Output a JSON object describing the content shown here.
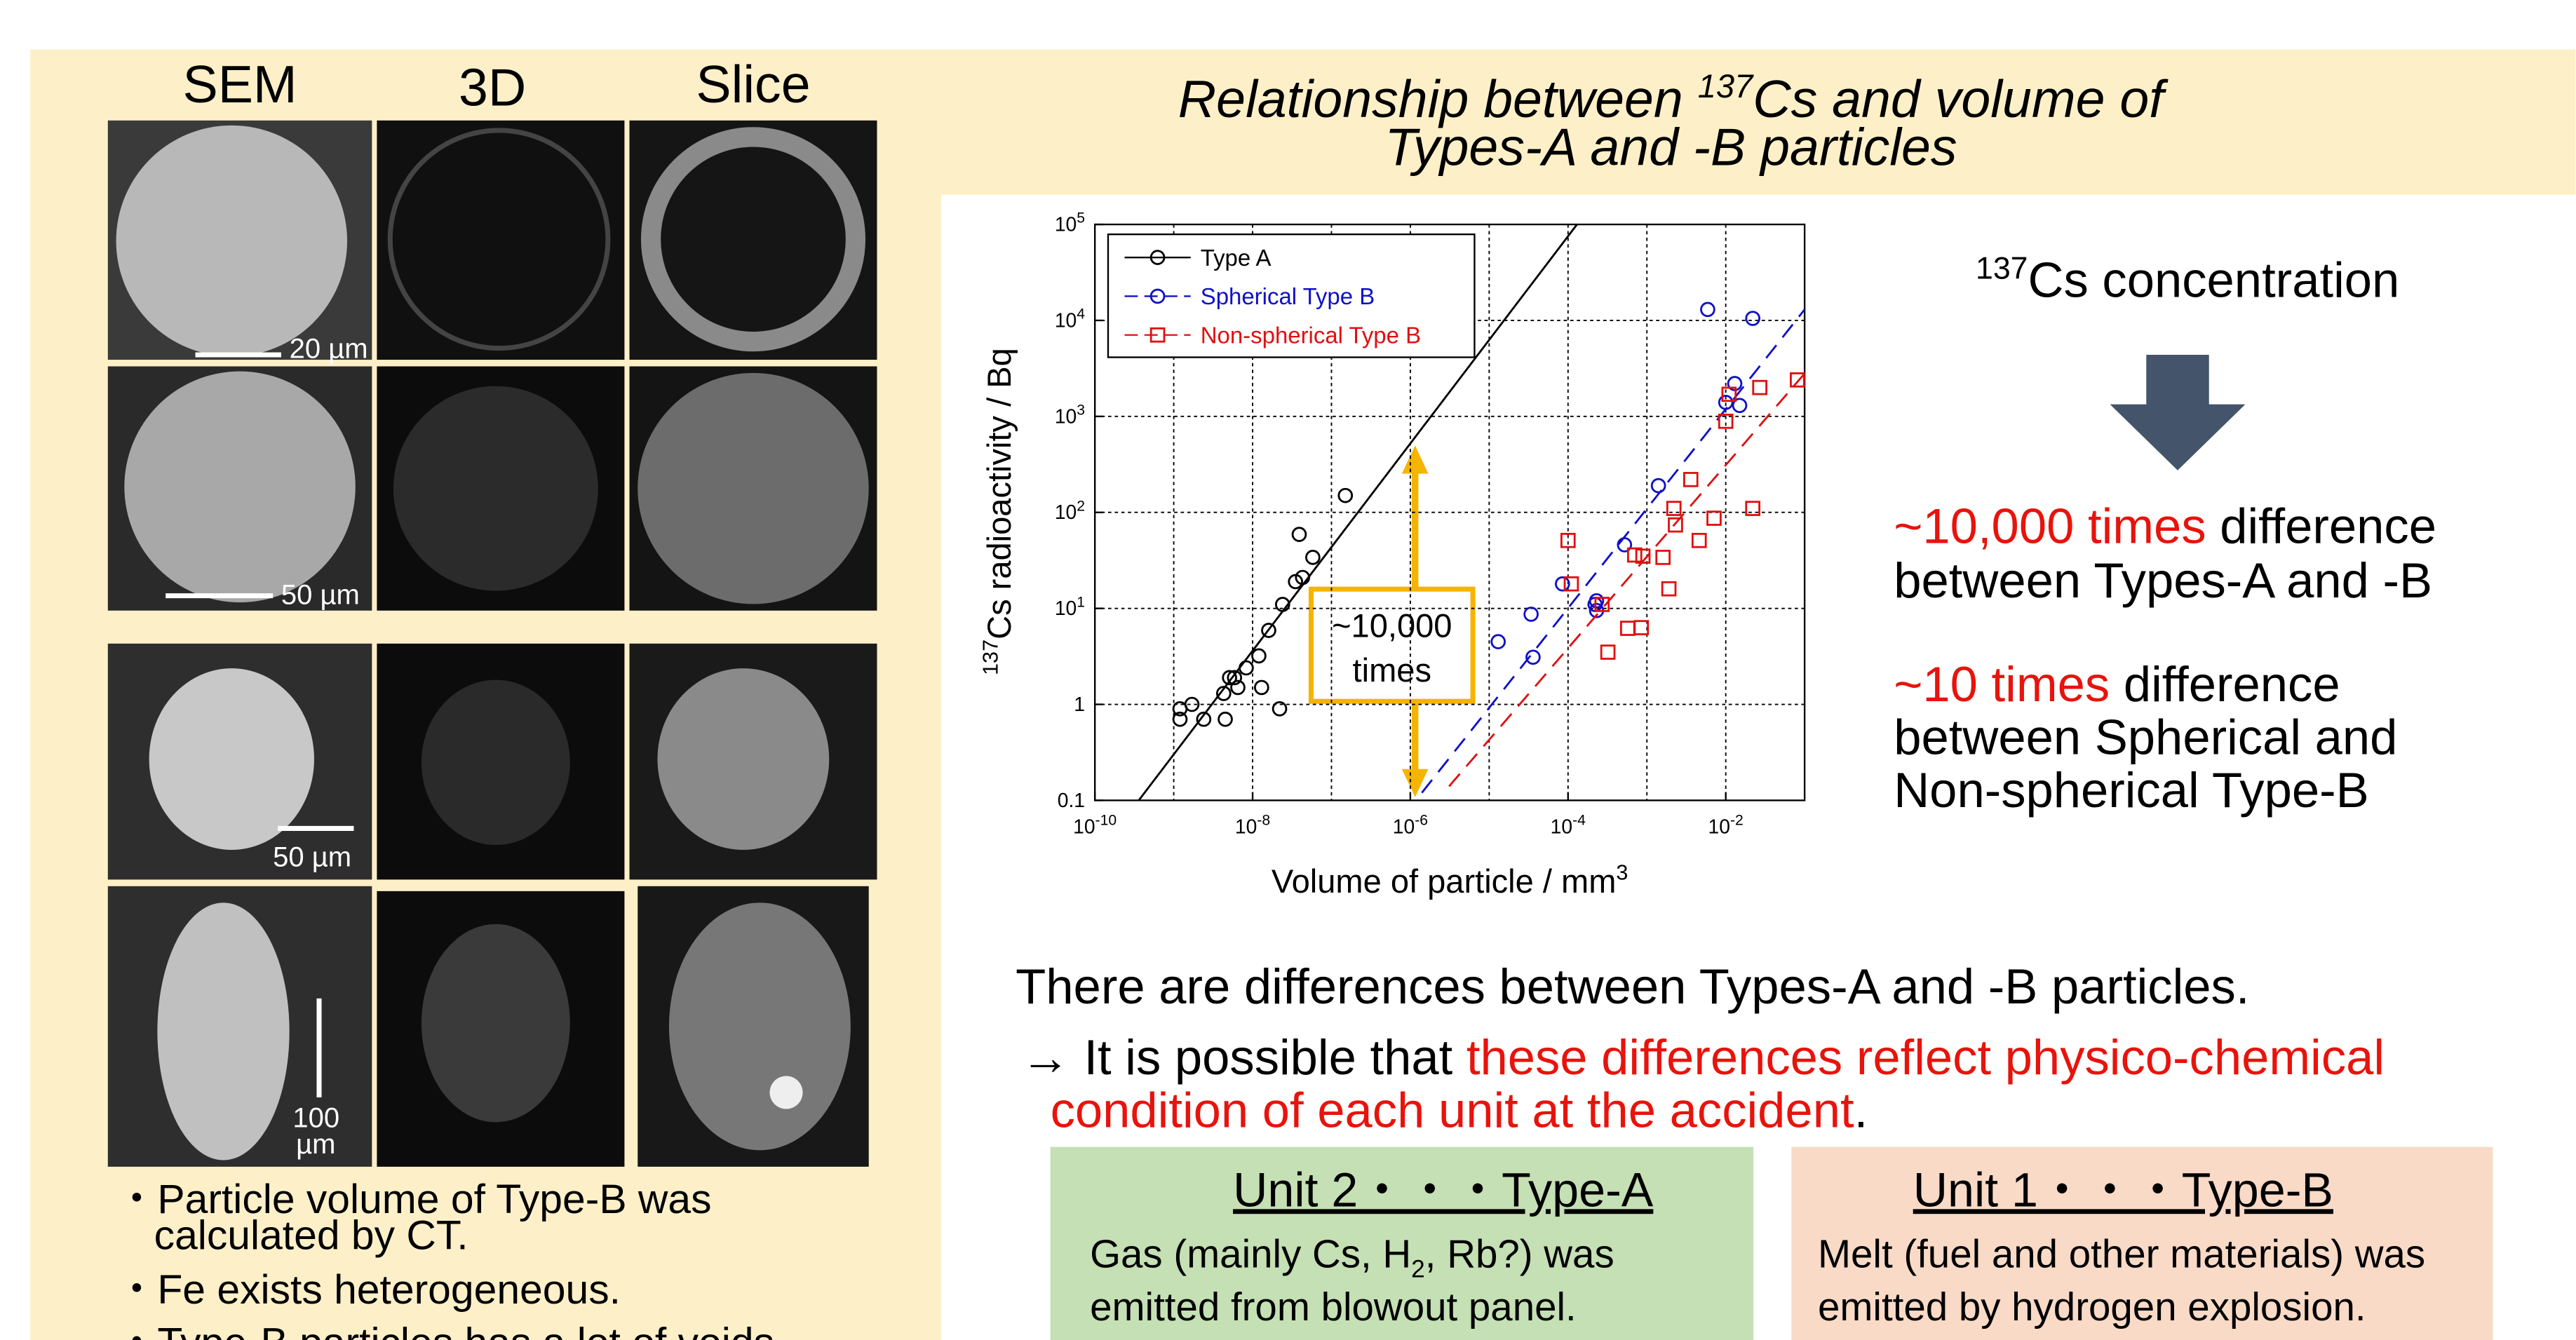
{
  "left_panel": {
    "columns": [
      "SEM",
      "3D",
      "Slice"
    ],
    "scale_bars": [
      "20 µm",
      "50 µm",
      "50 µm"
    ],
    "scale_bar_last": [
      "100",
      "µm"
    ],
    "bullets": [
      [
        "・Particle volume of Type-B was",
        "calculated by CT."
      ],
      [
        "・Fe exists heterogeneous."
      ],
      [
        "・Type-B particles has a lot of voids."
      ]
    ]
  },
  "chart_data": {
    "type": "scatter",
    "title_sup": "137",
    "title_a": "Relationship between ",
    "title_b": "Cs and volume of",
    "title_line2": "Types-A and -B particles",
    "x_label": "Volume of particle / mm",
    "x_label_sup": "3",
    "y_label_sup": "137",
    "y_label": "Cs radioactivity / Bq",
    "log_x": true,
    "log_y": true,
    "grid": true,
    "legend": "upper left",
    "xlim": [
      1e-10,
      0.1
    ],
    "ylim": [
      0.1,
      100000
    ],
    "xticks": [
      {
        "value": 1e-10,
        "label": "10",
        "label_sup": "-10"
      },
      {
        "value": 1e-08,
        "label": "10",
        "label_sup": "-8"
      },
      {
        "value": 1e-06,
        "label": "10",
        "label_sup": "-6"
      },
      {
        "value": 0.0001,
        "label": "10",
        "label_sup": "-4"
      },
      {
        "value": 0.01,
        "label": "10",
        "label_sup": "-2"
      }
    ],
    "xminor_ticks": [
      1e-09,
      1e-07,
      1e-05,
      0.001
    ],
    "yticks": [
      0.1,
      1,
      {
        "value": 10,
        "label": "10",
        "label_sup": "1"
      },
      {
        "value": 100,
        "label": "10",
        "label_sup": "2"
      },
      {
        "value": 1000,
        "label": "10",
        "label_sup": "3"
      },
      {
        "value": 10000,
        "label": "10",
        "label_sup": "4"
      },
      {
        "value": 100000,
        "label": "10",
        "label_sup": "5"
      }
    ],
    "series": [
      {
        "name": "Type A",
        "color": "#000000",
        "marker": "circle",
        "line_style": "solid",
        "x": [
          1.2e-09,
          1.2e-09,
          1.7e-09,
          2.4e-09,
          4.5e-09,
          4.3e-09,
          5.1e-09,
          5.9e-09,
          6.5e-09,
          8.3e-09,
          1.2e-08,
          1.3e-08,
          1.6e-08,
          2.2e-08,
          2.4e-08,
          3.5e-08,
          3.9e-08,
          4.3e-08,
          5.8e-08,
          1.5e-07
        ],
        "values": [
          0.9,
          0.7,
          1.0,
          0.7,
          0.7,
          1.3,
          1.9,
          1.9,
          1.5,
          2.4,
          3.2,
          1.5,
          5.9,
          0.9,
          11,
          19,
          59,
          21,
          34,
          150
        ],
        "fit": {
          "x": [
            3.6e-10,
            0.00013
          ],
          "values": [
            0.1,
            100000
          ]
        }
      },
      {
        "name": "Spherical Type B",
        "color": "#1010c8",
        "marker": "circle",
        "line_style": "dashed",
        "x": [
          1.3e-05,
          3.4e-05,
          3.6e-05,
          8.5e-05,
          0.00022,
          0.00023,
          0.00023,
          0.00052,
          0.0014,
          0.0059,
          0.01,
          0.013,
          0.015,
          0.022
        ],
        "values": [
          4.5,
          8.7,
          3.1,
          18,
          11,
          12,
          9.5,
          46,
          190,
          13000,
          1400,
          2200,
          1300,
          10500
        ],
        "fit": {
          "x": [
            1.4e-06,
            0.1
          ],
          "values": [
            0.12,
            13000
          ]
        }
      },
      {
        "name": "Non-spherical Type B",
        "color": "#e01010",
        "marker": "square",
        "line_style": "dashed",
        "x": [
          0.0001,
          0.00011,
          0.00027,
          0.00032,
          0.00057,
          0.0007,
          0.00085,
          0.00089,
          0.0016,
          0.0019,
          0.0022,
          0.0023,
          0.0036,
          0.0046,
          0.0071,
          0.01,
          0.011,
          0.022,
          0.027,
          0.081
        ],
        "values": [
          51,
          18,
          11,
          3.5,
          6.2,
          36,
          6.3,
          35,
          34,
          16,
          110,
          74,
          220,
          51,
          87,
          890,
          1700,
          110,
          2000,
          2400
        ],
        "fit": {
          "x": [
            3.1e-06,
            0.1
          ],
          "values": [
            0.14,
            2800
          ]
        }
      }
    ],
    "annotation": [
      "~10,000",
      "times"
    ]
  },
  "side_note": {
    "heading_sup": "137",
    "heading": "Cs concentration",
    "points": [
      {
        "highlight": "~10,000 times",
        "rest": " difference",
        "line2": "between Types-A and -B"
      },
      {
        "highlight": "~10 times",
        "rest": " difference",
        "line2": "between Spherical and",
        "line3": "Non-spherical Type-B"
      }
    ]
  },
  "conclusion": {
    "line1": "There are differences between Types-A and -B particles.",
    "line2_a": "→ It is possible that ",
    "line2_b": "these differences reflect physico-chemical",
    "line3_a": "condition of each unit at the accident",
    "line3_b": "."
  },
  "boxes": [
    {
      "title": "Unit 2・・・Type-A",
      "body_a": "Gas (mainly Cs, H",
      "body_sub": "2",
      "body_b": ", Rb?) was",
      "body_line2": "emitted from blowout panel."
    },
    {
      "title": "Unit 1・・・Type-B",
      "body_a": "Melt (fuel and other materials) was",
      "body_line2": "emitted by hydrogen explosion."
    }
  ]
}
